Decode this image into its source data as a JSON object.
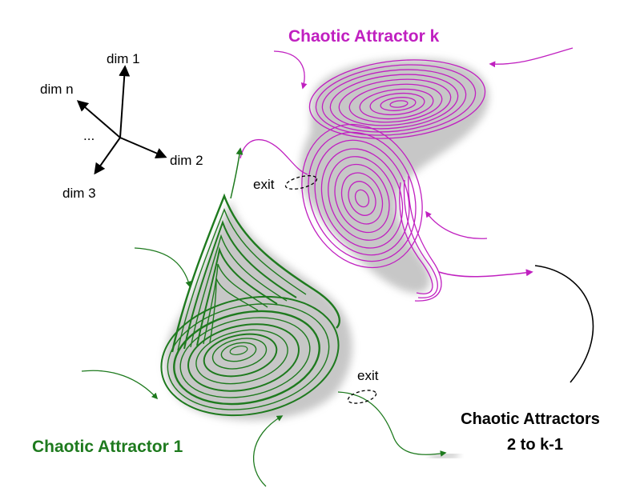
{
  "colors": {
    "attractor_k": "#c020c0",
    "attractor_1": "#1e7a1e",
    "shadow": "#9a9a9a",
    "axis": "#000000",
    "text": "#000000"
  },
  "labels": {
    "attractor_k": "Chaotic Attractor k",
    "attractor_1": "Chaotic Attractor 1",
    "middle_line1": "Chaotic Attractors",
    "middle_line2": "2 to k-1",
    "exit_top": "exit",
    "exit_bottom": "exit"
  },
  "axes": {
    "dim1": "dim 1",
    "dim2": "dim 2",
    "dim3": "dim 3",
    "dimn": "dim n",
    "ellipsis": "..."
  }
}
